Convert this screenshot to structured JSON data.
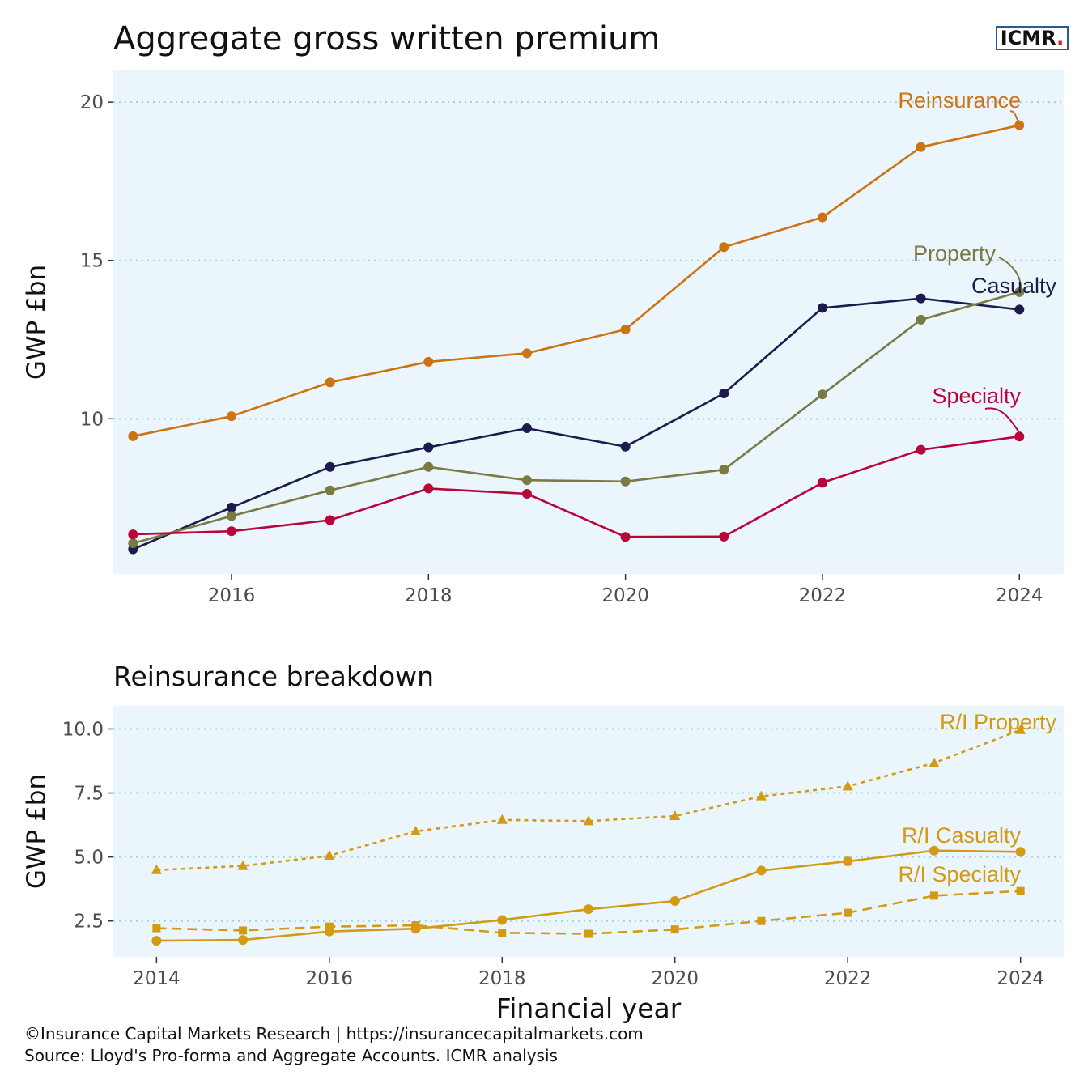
{
  "logo": {
    "text": "ICMR",
    "dot": "."
  },
  "footer": {
    "line1": "©Insurance Capital Markets Research | https://insurancecapitalmarkets.com",
    "line2": "Source: Lloyd's Pro-forma and Aggregate Accounts. ICMR analysis"
  },
  "chart_data": [
    {
      "type": "line",
      "title": "Aggregate gross written premium",
      "xlabel": "",
      "ylabel": "GWP £bn",
      "xlim": [
        2014.8,
        2024.45
      ],
      "ylim": [
        5.1,
        21.0
      ],
      "xticks": [
        2016,
        2018,
        2020,
        2022,
        2024
      ],
      "yticks": [
        10,
        15,
        20
      ],
      "grid": "horizontal-dotted",
      "background": "#eaf5fc",
      "x": [
        2015,
        2016,
        2017,
        2018,
        2019,
        2020,
        2021,
        2022,
        2023,
        2024
      ],
      "series": [
        {
          "name": "Reinsurance",
          "color": "#cc7414",
          "marker": "circle",
          "values": [
            9.45,
            10.08,
            11.15,
            11.8,
            12.07,
            12.82,
            15.42,
            16.36,
            18.58,
            19.27
          ]
        },
        {
          "name": "Casualty",
          "color": "#1c1c4c",
          "marker": "circle",
          "values": [
            5.88,
            7.2,
            8.48,
            9.1,
            9.7,
            9.12,
            10.8,
            13.5,
            13.8,
            13.45
          ]
        },
        {
          "name": "Property",
          "color": "#7b7a44",
          "marker": "circle",
          "values": [
            6.07,
            6.93,
            7.74,
            8.48,
            8.06,
            8.02,
            8.39,
            10.77,
            13.13,
            14.0
          ]
        },
        {
          "name": "Specialty",
          "color": "#b8063a",
          "marker": "circle",
          "values": [
            6.35,
            6.45,
            6.8,
            7.8,
            7.63,
            6.27,
            6.28,
            7.98,
            9.02,
            9.44
          ]
        }
      ]
    },
    {
      "type": "line",
      "title": "Reinsurance breakdown",
      "xlabel": "Financial year",
      "ylabel": "GWP £bn",
      "xlim": [
        2013.5,
        2024.5
      ],
      "ylim": [
        1.1,
        10.9
      ],
      "xticks": [
        2014,
        2016,
        2018,
        2020,
        2022,
        2024
      ],
      "yticks": [
        2.5,
        5.0,
        7.5,
        10.0
      ],
      "ytick_labels": [
        "2.5",
        "5.0",
        "7.5",
        "10.0"
      ],
      "grid": "horizontal-dotted",
      "background": "#eaf5fc",
      "x": [
        2014,
        2015,
        2016,
        2017,
        2018,
        2019,
        2020,
        2021,
        2022,
        2023,
        2024
      ],
      "series": [
        {
          "name": "R/I Property",
          "color": "#d39a14",
          "marker": "triangle",
          "dash": "dotted",
          "values": [
            4.49,
            4.65,
            5.05,
            6.0,
            6.45,
            6.4,
            6.6,
            7.37,
            7.76,
            8.67,
            9.96
          ]
        },
        {
          "name": "R/I Casualty",
          "color": "#d39a14",
          "marker": "circle",
          "dash": "solid",
          "values": [
            1.73,
            1.76,
            2.09,
            2.2,
            2.54,
            2.96,
            3.28,
            4.47,
            4.83,
            5.25,
            5.2
          ]
        },
        {
          "name": "R/I Specialty",
          "color": "#d39a14",
          "marker": "square",
          "dash": "dashed",
          "values": [
            2.22,
            2.13,
            2.28,
            2.33,
            2.04,
            2.0,
            2.17,
            2.5,
            2.82,
            3.49,
            3.67
          ]
        }
      ]
    }
  ]
}
